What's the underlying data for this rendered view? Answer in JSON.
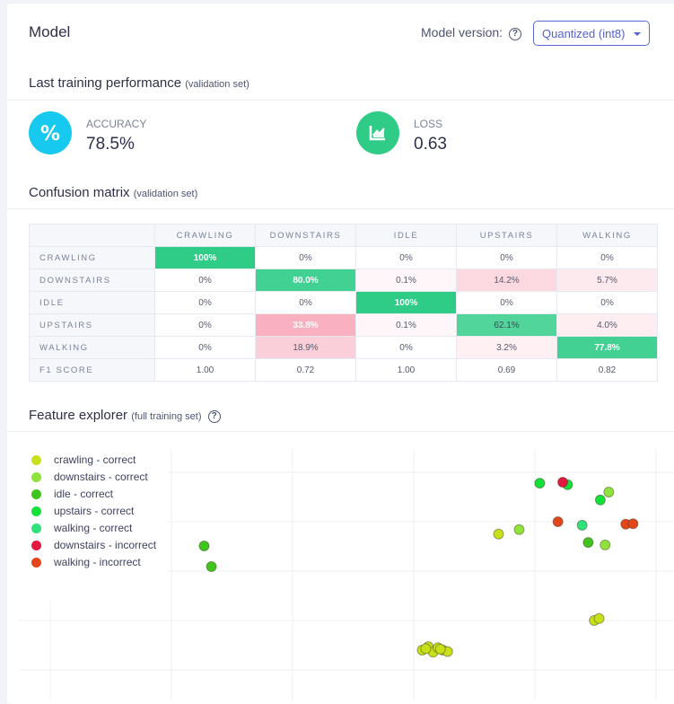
{
  "header": {
    "title": "Model",
    "model_version_label": "Model version:",
    "help_icon": "question-circle-icon",
    "model_version_selected": "Quantized (int8)"
  },
  "performance": {
    "title": "Last training performance",
    "subtitle": "(validation set)",
    "accuracy": {
      "label": "ACCURACY",
      "value": "78.5%",
      "icon": "percent-icon",
      "color": "#17c8ef"
    },
    "loss": {
      "label": "LOSS",
      "value": "0.63",
      "icon": "chart-line-icon",
      "color": "#2ecc87"
    }
  },
  "confusion": {
    "title": "Confusion matrix",
    "subtitle": "(validation set)",
    "columns": [
      "CRAWLING",
      "DOWNSTAIRS",
      "IDLE",
      "UPSTAIRS",
      "WALKING"
    ],
    "rows": [
      {
        "label": "CRAWLING",
        "cells": [
          "100%",
          "0%",
          "0%",
          "0%",
          "0%"
        ]
      },
      {
        "label": "DOWNSTAIRS",
        "cells": [
          "0%",
          "80.0%",
          "0.1%",
          "14.2%",
          "5.7%"
        ]
      },
      {
        "label": "IDLE",
        "cells": [
          "0%",
          "0%",
          "100%",
          "0%",
          "0%"
        ]
      },
      {
        "label": "UPSTAIRS",
        "cells": [
          "0%",
          "33.8%",
          "0.1%",
          "62.1%",
          "4.0%"
        ]
      },
      {
        "label": "WALKING",
        "cells": [
          "0%",
          "18.9%",
          "0%",
          "3.2%",
          "77.8%"
        ]
      }
    ],
    "f1": {
      "label": "F1 SCORE",
      "cells": [
        "1.00",
        "0.72",
        "1.00",
        "0.69",
        "0.82"
      ]
    },
    "colors": {
      "correct": "#2ecc87",
      "incorrect": "#f36b8a"
    }
  },
  "feature_explorer": {
    "title": "Feature explorer",
    "subtitle": "(full training set)",
    "help_icon": "question-circle-icon"
  },
  "chart_data": {
    "type": "scatter",
    "title": "Feature explorer",
    "xlabel": "",
    "ylabel": "",
    "xlim": [
      -0.3,
      5.2
    ],
    "ylim": [
      -0.3,
      4.5
    ],
    "grid": true,
    "legend_position": "top-left",
    "series": [
      {
        "name": "crawling - correct",
        "color": "#c8e01a",
        "points": [
          [
            3.7,
            2.75
          ],
          [
            4.49,
            1.0
          ],
          [
            4.53,
            1.04
          ],
          [
            3.07,
            0.4
          ],
          [
            3.12,
            0.47
          ],
          [
            3.16,
            0.36
          ],
          [
            3.2,
            0.45
          ],
          [
            3.24,
            0.4
          ],
          [
            3.28,
            0.37
          ],
          [
            3.1,
            0.43
          ],
          [
            3.22,
            0.42
          ]
        ]
      },
      {
        "name": "downstairs - correct",
        "color": "#8fe33a",
        "points": [
          [
            3.87,
            2.84
          ],
          [
            4.61,
            3.6
          ],
          [
            4.58,
            2.53
          ]
        ]
      },
      {
        "name": "idle - correct",
        "color": "#3ec61d",
        "points": [
          [
            1.27,
            2.51
          ],
          [
            1.33,
            2.09
          ],
          [
            4.44,
            2.58
          ]
        ]
      },
      {
        "name": "upstairs - correct",
        "color": "#14e03a",
        "points": [
          [
            4.04,
            3.78
          ],
          [
            4.27,
            3.75
          ],
          [
            4.54,
            3.44
          ]
        ]
      },
      {
        "name": "walking - correct",
        "color": "#2fe27a",
        "points": [
          [
            4.39,
            2.93
          ]
        ]
      },
      {
        "name": "downstairs - incorrect",
        "color": "#e3173f",
        "points": [
          [
            4.23,
            3.8
          ]
        ]
      },
      {
        "name": "walking - incorrect",
        "color": "#e3461a",
        "points": [
          [
            4.19,
            3.0
          ],
          [
            4.75,
            2.95
          ],
          [
            4.81,
            2.96
          ]
        ]
      }
    ]
  }
}
